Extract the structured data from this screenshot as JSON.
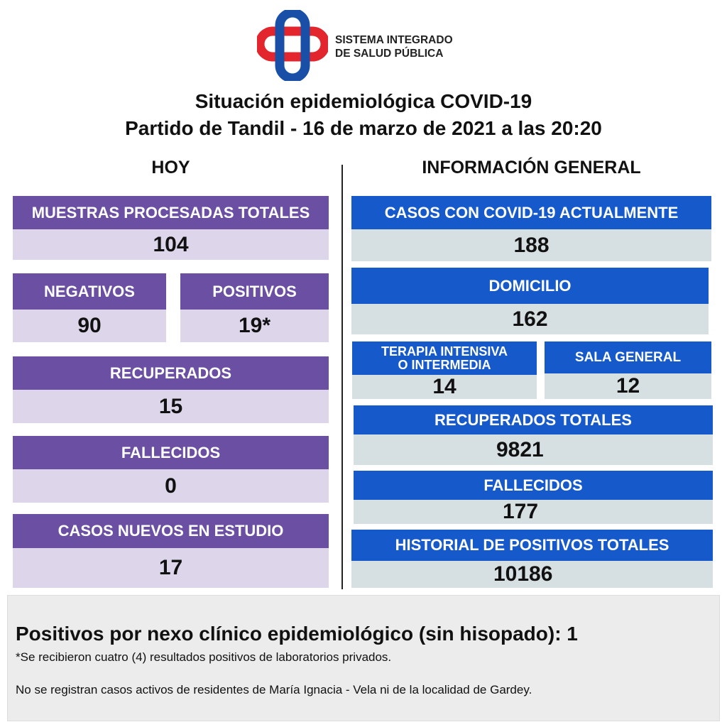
{
  "logo": {
    "line1": "SISTEMA INTEGRADO",
    "line2": "DE SALUD PÚBLICA"
  },
  "title": {
    "line1": "Situación epidemiológica COVID-19",
    "line2": "Partido de Tandil - 16  de marzo de 2021 a las 20:20"
  },
  "hoy": {
    "heading": "HOY",
    "muestras": {
      "label": "MUESTRAS PROCESADAS TOTALES",
      "value": "104"
    },
    "negativos": {
      "label": "NEGATIVOS",
      "value": "90"
    },
    "positivos": {
      "label": "POSITIVOS",
      "value": "19*"
    },
    "recuperados": {
      "label": "RECUPERADOS",
      "value": "15"
    },
    "fallecidos": {
      "label": "FALLECIDOS",
      "value": "0"
    },
    "casos_nuevos": {
      "label": "CASOS NUEVOS EN ESTUDIO",
      "value": "17"
    }
  },
  "general": {
    "heading": "INFORMACIÓN GENERAL",
    "casos": {
      "label": "CASOS CON COVID-19 ACTUALMENTE",
      "value": "188"
    },
    "domicilio": {
      "label": "DOMICILIO",
      "value": "162"
    },
    "terapia": {
      "label1": "TERAPIA INTENSIVA",
      "label2": "O INTERMEDIA",
      "value": "14"
    },
    "sala": {
      "label": "SALA GENERAL",
      "value": "12"
    },
    "recuperados": {
      "label": "RECUPERADOS TOTALES",
      "value": "9821"
    },
    "fallecidos": {
      "label": "FALLECIDOS",
      "value": "177"
    },
    "historial": {
      "label": "HISTORIAL DE POSITIVOS TOTALES",
      "value": "10186"
    }
  },
  "footer": {
    "nexo": "Positivos por nexo clínico epidemiológico (sin hisopado): 1",
    "note1": "*Se recibieron cuatro (4) resultados positivos de laboratorios privados.",
    "note2": "No se registran casos activos de residentes de María Ignacia - Vela ni de la localidad de Gardey."
  },
  "colors": {
    "purple": "#6a4fa3",
    "purple_light": "#ddd6ea",
    "blue": "#1659cb",
    "blue_light": "#d6dfe2"
  }
}
